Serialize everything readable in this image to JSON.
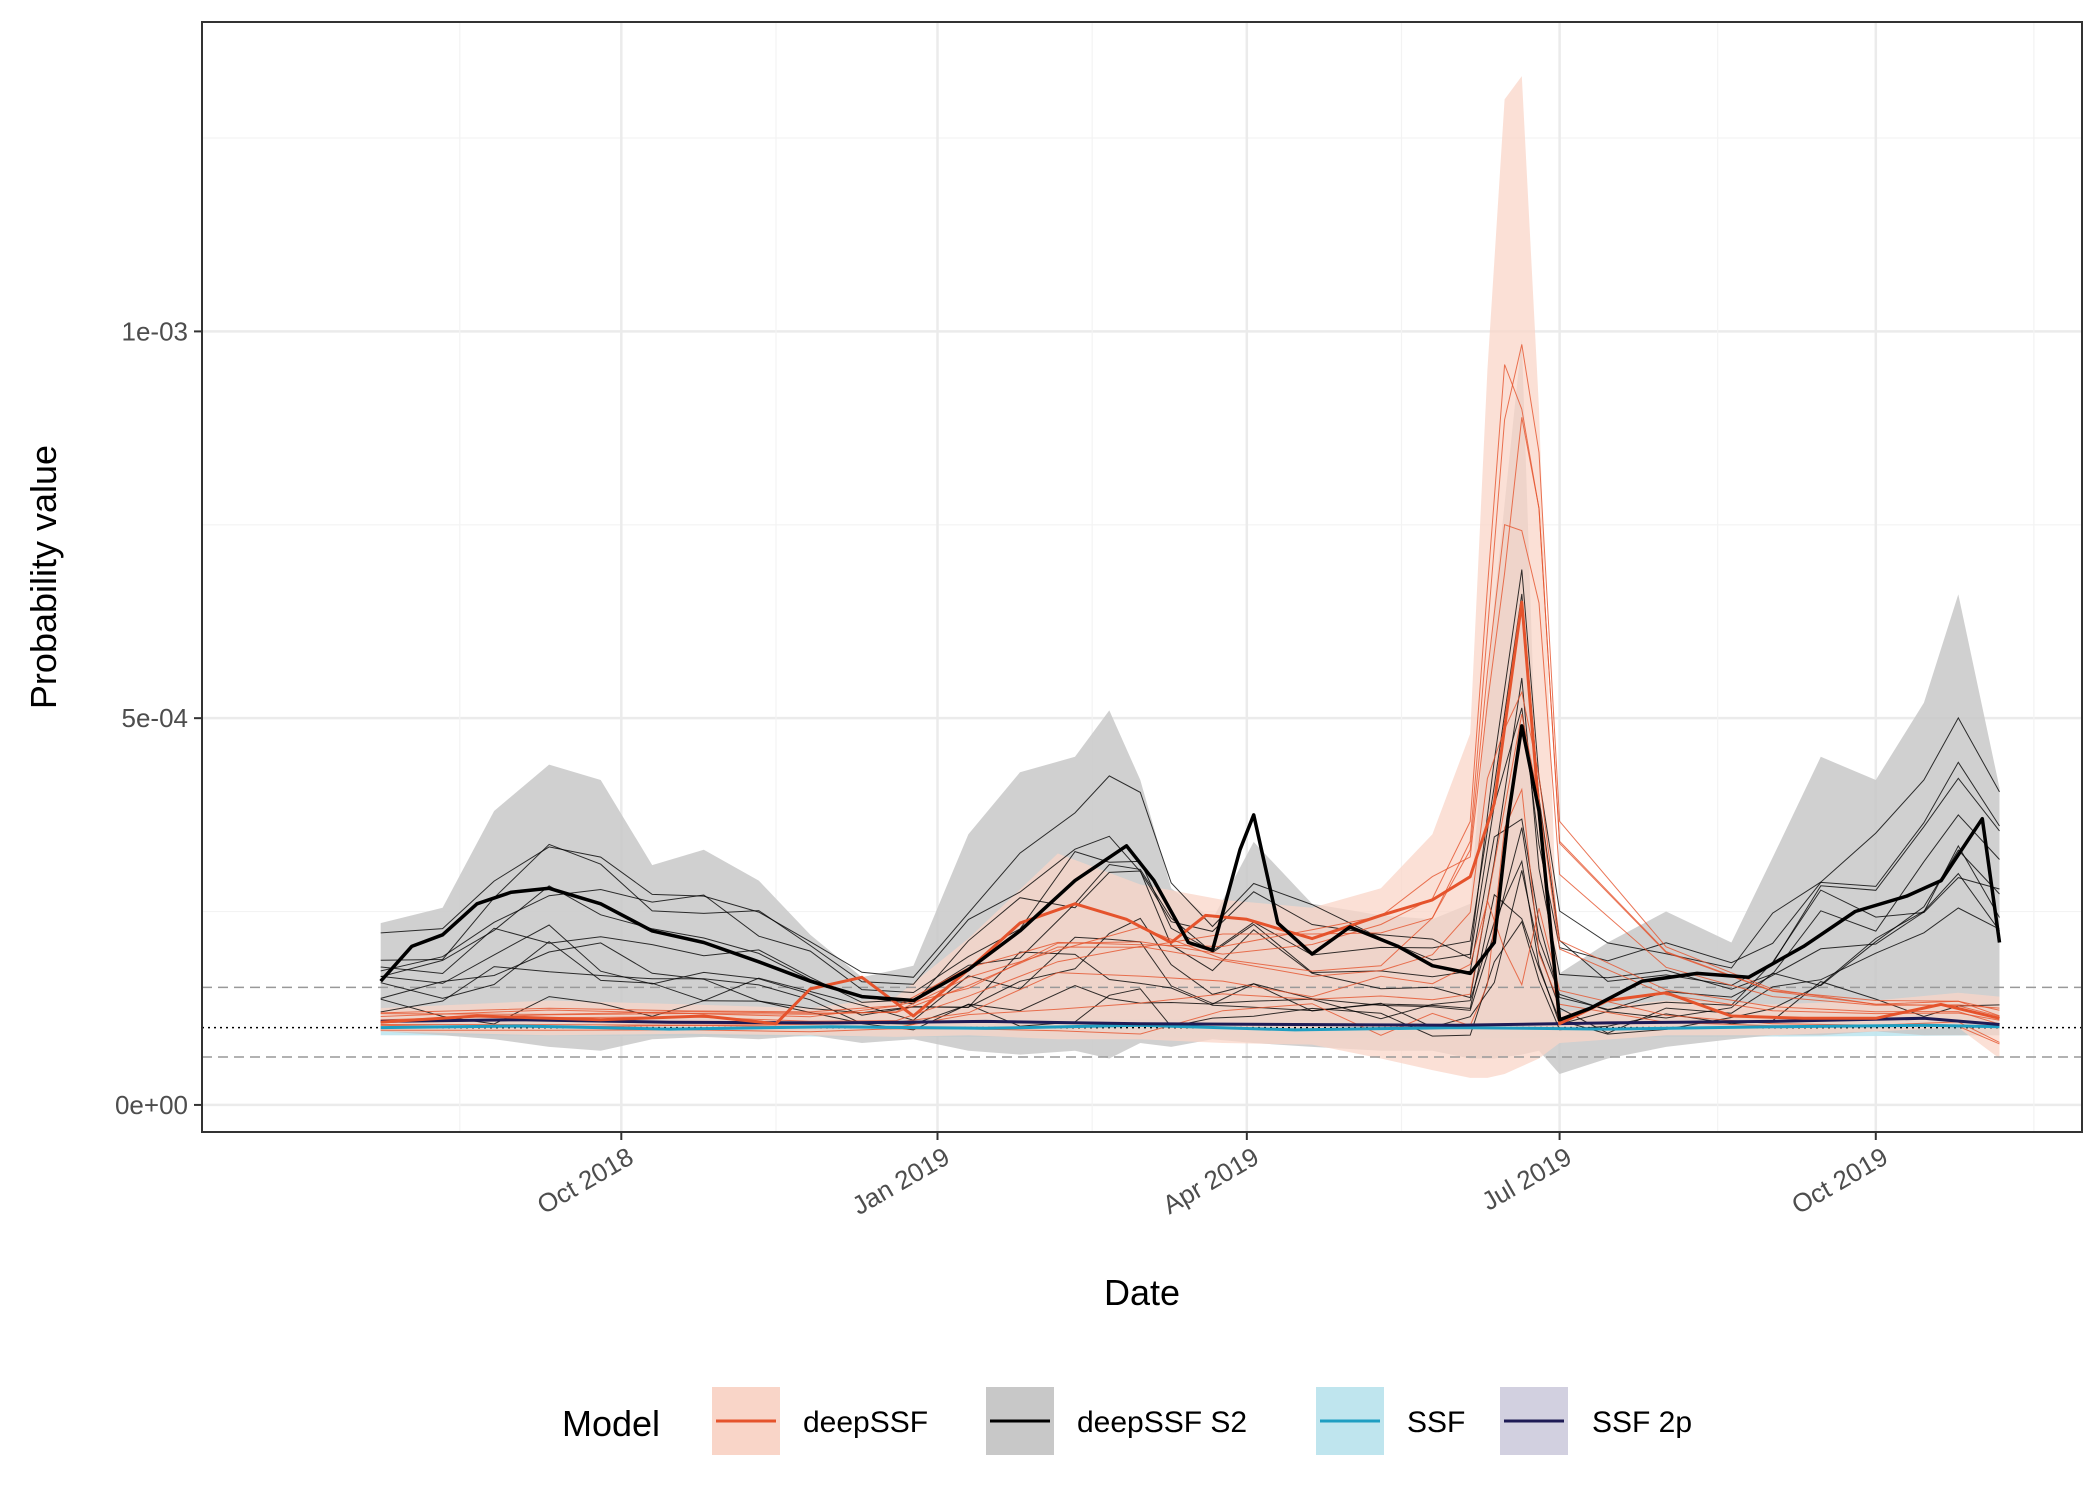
{
  "chart_data": {
    "type": "line",
    "title": "",
    "xlabel": "Date",
    "ylabel": "Probability value",
    "x_ticks": [
      "Oct 2018",
      "Jan 2019",
      "Apr 2019",
      "Jul 2019",
      "Oct 2019"
    ],
    "x_tick_dates": [
      "2018-10-01",
      "2019-01-01",
      "2019-04-01",
      "2019-07-01",
      "2019-10-01"
    ],
    "y_ticks": [
      "0e+00",
      "5e-04",
      "1e-03"
    ],
    "y_tick_values": [
      0,
      0.0005,
      0.001
    ],
    "ylim": [
      -3.5e-05,
      0.0014
    ],
    "xlim": [
      "2018-06-01",
      "2019-11-30"
    ],
    "grid": true,
    "reference_lines": [
      {
        "y": 0.0001,
        "style": "dotted",
        "color": "#000000"
      },
      {
        "y": 0.000152,
        "style": "dashed",
        "color": "#999999"
      },
      {
        "y": 6.2e-05,
        "style": "dashed",
        "color": "#999999"
      }
    ],
    "legend": {
      "title": "Model",
      "position": "bottom",
      "entries": [
        {
          "label": "deepSSF",
          "line_color": "#e5532c",
          "fill_color": "#f9d5c8"
        },
        {
          "label": "deepSSF S2",
          "line_color": "#000000",
          "fill_color": "#c8c8c8"
        },
        {
          "label": "SSF",
          "line_color": "#1f9ec1",
          "fill_color": "#bfe5ee"
        },
        {
          "label": "SSF 2p",
          "line_color": "#1e1b55",
          "fill_color": "#d2d0e0"
        }
      ]
    },
    "series": [
      {
        "name": "deepSSF S2",
        "role": "mean",
        "color": "#000000",
        "x": [
          "2018-07-23",
          "2018-08-01",
          "2018-08-10",
          "2018-08-20",
          "2018-08-30",
          "2018-09-10",
          "2018-09-25",
          "2018-10-10",
          "2018-10-25",
          "2018-11-10",
          "2018-11-25",
          "2018-12-10",
          "2018-12-25",
          "2019-01-10",
          "2019-01-25",
          "2019-02-10",
          "2019-02-25",
          "2019-03-05",
          "2019-03-15",
          "2019-03-22",
          "2019-03-30",
          "2019-04-03",
          "2019-04-10",
          "2019-04-20",
          "2019-05-01",
          "2019-05-15",
          "2019-05-25",
          "2019-06-05",
          "2019-06-12",
          "2019-06-16",
          "2019-06-20",
          "2019-06-25",
          "2019-07-01",
          "2019-07-10",
          "2019-07-25",
          "2019-08-10",
          "2019-08-25",
          "2019-09-10",
          "2019-09-25",
          "2019-10-10",
          "2019-10-20",
          "2019-11-01",
          "2019-11-06"
        ],
        "y": [
          0.00016,
          0.000205,
          0.00022,
          0.00026,
          0.000275,
          0.00028,
          0.00026,
          0.000225,
          0.00021,
          0.000185,
          0.00016,
          0.00014,
          0.000135,
          0.000175,
          0.000225,
          0.00029,
          0.000335,
          0.00029,
          0.00021,
          0.0002,
          0.00033,
          0.000375,
          0.000235,
          0.000195,
          0.00023,
          0.000205,
          0.00018,
          0.00017,
          0.00021,
          0.00037,
          0.00049,
          0.00038,
          0.00011,
          0.000125,
          0.00016,
          0.00017,
          0.000165,
          0.000205,
          0.00025,
          0.00027,
          0.00029,
          0.00037,
          0.00021
        ]
      },
      {
        "name": "deepSSF",
        "role": "mean",
        "color": "#e5532c",
        "x": [
          "2018-07-23",
          "2018-08-20",
          "2018-09-25",
          "2018-10-25",
          "2018-11-15",
          "2018-11-25",
          "2018-12-10",
          "2018-12-25",
          "2019-01-10",
          "2019-01-25",
          "2019-02-10",
          "2019-02-25",
          "2019-03-10",
          "2019-03-20",
          "2019-04-01",
          "2019-04-20",
          "2019-05-10",
          "2019-05-25",
          "2019-06-05",
          "2019-06-12",
          "2019-06-20",
          "2019-06-25",
          "2019-07-01",
          "2019-07-15",
          "2019-08-01",
          "2019-08-20",
          "2019-09-10",
          "2019-10-01",
          "2019-10-20",
          "2019-11-06"
        ],
        "y": [
          0.000107,
          0.000115,
          0.00011,
          0.000115,
          0.000105,
          0.00015,
          0.000165,
          0.000115,
          0.000175,
          0.000235,
          0.00026,
          0.00024,
          0.00021,
          0.000245,
          0.00024,
          0.000215,
          0.000245,
          0.000265,
          0.000295,
          0.00039,
          0.00065,
          0.00038,
          0.000105,
          0.000135,
          0.000145,
          0.000115,
          0.000112,
          0.000112,
          0.00013,
          0.000112
        ]
      },
      {
        "name": "SSF",
        "role": "mean",
        "color": "#1f9ec1",
        "x": [
          "2018-07-23",
          "2018-09-01",
          "2018-10-15",
          "2018-12-01",
          "2019-01-15",
          "2019-03-01",
          "2019-04-15",
          "2019-06-01",
          "2019-07-15",
          "2019-09-01",
          "2019-10-15",
          "2019-11-06"
        ],
        "y": [
          0.0001,
          0.000102,
          9.8e-05,
          0.000101,
          9.9e-05,
          0.000103,
          9.7e-05,
          0.0001,
          9.8e-05,
          0.000101,
          0.000103,
          0.000101
        ]
      },
      {
        "name": "SSF 2p",
        "role": "mean",
        "color": "#1e1b55",
        "x": [
          "2018-07-23",
          "2018-09-01",
          "2018-10-15",
          "2018-12-01",
          "2019-01-15",
          "2019-03-01",
          "2019-04-15",
          "2019-06-01",
          "2019-07-15",
          "2019-09-01",
          "2019-10-15",
          "2019-11-06"
        ],
        "y": [
          0.000108,
          0.00011,
          0.000107,
          0.000106,
          0.000108,
          0.000105,
          0.000104,
          0.000103,
          0.000106,
          0.000108,
          0.000112,
          0.000104
        ]
      }
    ],
    "bands": [
      {
        "name": "deepSSF",
        "color": "#f9d5c8",
        "x": [
          "2018-07-23",
          "2018-09-10",
          "2018-10-20",
          "2018-11-25",
          "2018-12-20",
          "2019-01-10",
          "2019-02-05",
          "2019-03-01",
          "2019-03-25",
          "2019-04-20",
          "2019-05-10",
          "2019-05-25",
          "2019-06-05",
          "2019-06-10",
          "2019-06-15",
          "2019-06-20",
          "2019-06-25",
          "2019-07-01",
          "2019-08-01",
          "2019-09-01",
          "2019-10-01",
          "2019-10-25",
          "2019-11-06"
        ],
        "upper": [
          0.000125,
          0.000135,
          0.00013,
          0.000125,
          0.00014,
          0.000215,
          0.000325,
          0.000285,
          0.000265,
          0.000255,
          0.00028,
          0.00035,
          0.00048,
          0.00095,
          0.0013,
          0.00133,
          0.0009,
          0.00012,
          0.000135,
          0.00013,
          0.000135,
          0.000145,
          0.00014
        ],
        "lower": [
          9.5e-05,
          9e-05,
          9.2e-05,
          9e-05,
          8.8e-05,
          9e-05,
          8.5e-05,
          8.5e-05,
          8e-05,
          7.8e-05,
          6e-05,
          4.5e-05,
          3.5e-05,
          3.5e-05,
          4e-05,
          5e-05,
          6e-05,
          8e-05,
          9e-05,
          9e-05,
          9.5e-05,
          0.0001,
          6e-05
        ]
      },
      {
        "name": "deepSSF S2",
        "color": "#c8c8c8",
        "x": [
          "2018-07-23",
          "2018-08-10",
          "2018-08-25",
          "2018-09-10",
          "2018-09-25",
          "2018-10-10",
          "2018-10-25",
          "2018-11-10",
          "2018-11-25",
          "2018-12-10",
          "2018-12-25",
          "2019-01-10",
          "2019-01-25",
          "2019-02-10",
          "2019-02-20",
          "2019-03-01",
          "2019-03-10",
          "2019-03-22",
          "2019-04-03",
          "2019-04-20",
          "2019-05-10",
          "2019-05-25",
          "2019-06-05",
          "2019-06-12",
          "2019-06-20",
          "2019-06-25",
          "2019-07-01",
          "2019-07-15",
          "2019-08-01",
          "2019-08-20",
          "2019-09-01",
          "2019-09-15",
          "2019-10-01",
          "2019-10-15",
          "2019-10-25",
          "2019-11-06"
        ],
        "upper": [
          0.000235,
          0.000255,
          0.00038,
          0.00044,
          0.00042,
          0.00031,
          0.00033,
          0.00029,
          0.00022,
          0.000165,
          0.00018,
          0.00035,
          0.00043,
          0.00045,
          0.00051,
          0.00042,
          0.00028,
          0.00024,
          0.00034,
          0.00026,
          0.000245,
          0.00024,
          0.00026,
          0.00065,
          0.00099,
          0.00032,
          0.00017,
          0.00021,
          0.00025,
          0.00021,
          0.00032,
          0.00045,
          0.00042,
          0.00052,
          0.00066,
          0.00041
        ],
        "lower": [
          9.5e-05,
          9e-05,
          8.5e-05,
          7.5e-05,
          7e-05,
          8.5e-05,
          8.8e-05,
          8.5e-05,
          9e-05,
          8e-05,
          8.5e-05,
          7e-05,
          6.5e-05,
          7e-05,
          6e-05,
          8e-05,
          7.5e-05,
          8.5e-05,
          8e-05,
          7.5e-05,
          7e-05,
          7e-05,
          6e-05,
          6e-05,
          6.5e-05,
          7e-05,
          4e-05,
          6e-05,
          7.5e-05,
          8.5e-05,
          9e-05,
          9e-05,
          9.5e-05,
          9e-05,
          9e-05,
          9e-05
        ]
      },
      {
        "name": "SSF",
        "color": "#bfe5ee",
        "x": [
          "2018-07-23",
          "2019-01-01",
          "2019-06-01",
          "2019-11-06"
        ],
        "upper": [
          0.000112,
          0.000112,
          0.00011,
          0.000115
        ],
        "lower": [
          9e-05,
          8.8e-05,
          8.6e-05,
          9e-05
        ]
      }
    ],
    "extra_series_note": ""
  }
}
